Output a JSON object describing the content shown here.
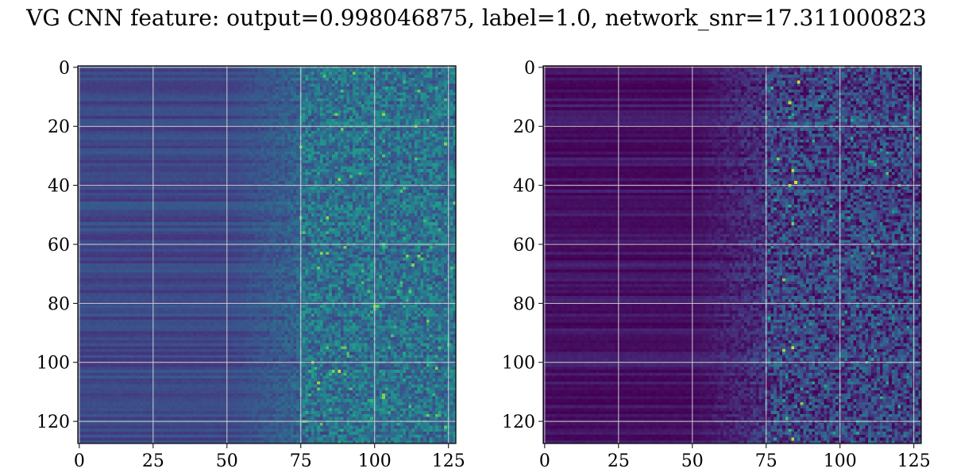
{
  "figure": {
    "title": "VG CNN feature: output=0.998046875, label=1.0, network_snr=17.311000823"
  },
  "chart_data": [
    {
      "type": "heatmap",
      "colormap": "viridis",
      "grid": true,
      "xlim": [
        0,
        127
      ],
      "ylim": [
        127,
        0
      ],
      "xticks": [
        0,
        25,
        50,
        75,
        100,
        125
      ],
      "xtick_labels": [
        "0",
        "25",
        "50",
        "75",
        "100",
        "125"
      ],
      "yticks": [
        0,
        20,
        40,
        60,
        80,
        100,
        120
      ],
      "ytick_labels": [
        "0",
        "20",
        "40",
        "60",
        "80",
        "100",
        "120"
      ],
      "shape": [
        128,
        128
      ],
      "value_range": [
        0,
        1
      ],
      "structure": {
        "low_region_end_x": 50,
        "transition_end_x": 75,
        "low_level": 0.22,
        "transition_level": 0.32,
        "noise_level": 0.38,
        "noise_amplitude": 0.2
      },
      "hotspots": [
        {
          "x": 82,
          "y": 63,
          "value": 0.85
        },
        {
          "x": 84,
          "y": 63,
          "value": 0.8
        },
        {
          "x": 81,
          "y": 68,
          "value": 0.75
        },
        {
          "x": 88,
          "y": 103,
          "value": 0.95
        },
        {
          "x": 86,
          "y": 103,
          "value": 0.8
        },
        {
          "x": 90,
          "y": 104,
          "value": 0.7
        },
        {
          "x": 83,
          "y": 3,
          "value": 0.7
        }
      ]
    },
    {
      "type": "heatmap",
      "colormap": "viridis",
      "grid": true,
      "xlim": [
        0,
        127
      ],
      "ylim": [
        127,
        0
      ],
      "xticks": [
        0,
        25,
        50,
        75,
        100,
        125
      ],
      "xtick_labels": [
        "0",
        "25",
        "50",
        "75",
        "100",
        "125"
      ],
      "yticks": [
        0,
        20,
        40,
        60,
        80,
        100,
        120
      ],
      "ytick_labels": [
        "0",
        "20",
        "40",
        "60",
        "80",
        "100",
        "120"
      ],
      "shape": [
        128,
        128
      ],
      "value_range": [
        0,
        1
      ],
      "structure": {
        "low_region_end_x": 50,
        "transition_end_x": 75,
        "low_level": 0.05,
        "transition_level": 0.15,
        "noise_level": 0.2,
        "noise_amplitude": 0.25
      },
      "hotspots": [
        {
          "x": 86,
          "y": 5,
          "value": 0.95
        },
        {
          "x": 83,
          "y": 12,
          "value": 0.9
        },
        {
          "x": 84,
          "y": 35,
          "value": 0.9
        },
        {
          "x": 85,
          "y": 39,
          "value": 0.95
        },
        {
          "x": 83,
          "y": 40,
          "value": 0.85
        },
        {
          "x": 79,
          "y": 31,
          "value": 0.8
        },
        {
          "x": 84,
          "y": 53,
          "value": 0.8
        },
        {
          "x": 81,
          "y": 72,
          "value": 0.8
        },
        {
          "x": 84,
          "y": 95,
          "value": 0.95
        },
        {
          "x": 81,
          "y": 96,
          "value": 0.85
        },
        {
          "x": 87,
          "y": 114,
          "value": 0.8
        },
        {
          "x": 84,
          "y": 126,
          "value": 0.9
        },
        {
          "x": 82,
          "y": 119,
          "value": 0.7
        },
        {
          "x": 116,
          "y": 36,
          "value": 0.75
        }
      ]
    }
  ]
}
